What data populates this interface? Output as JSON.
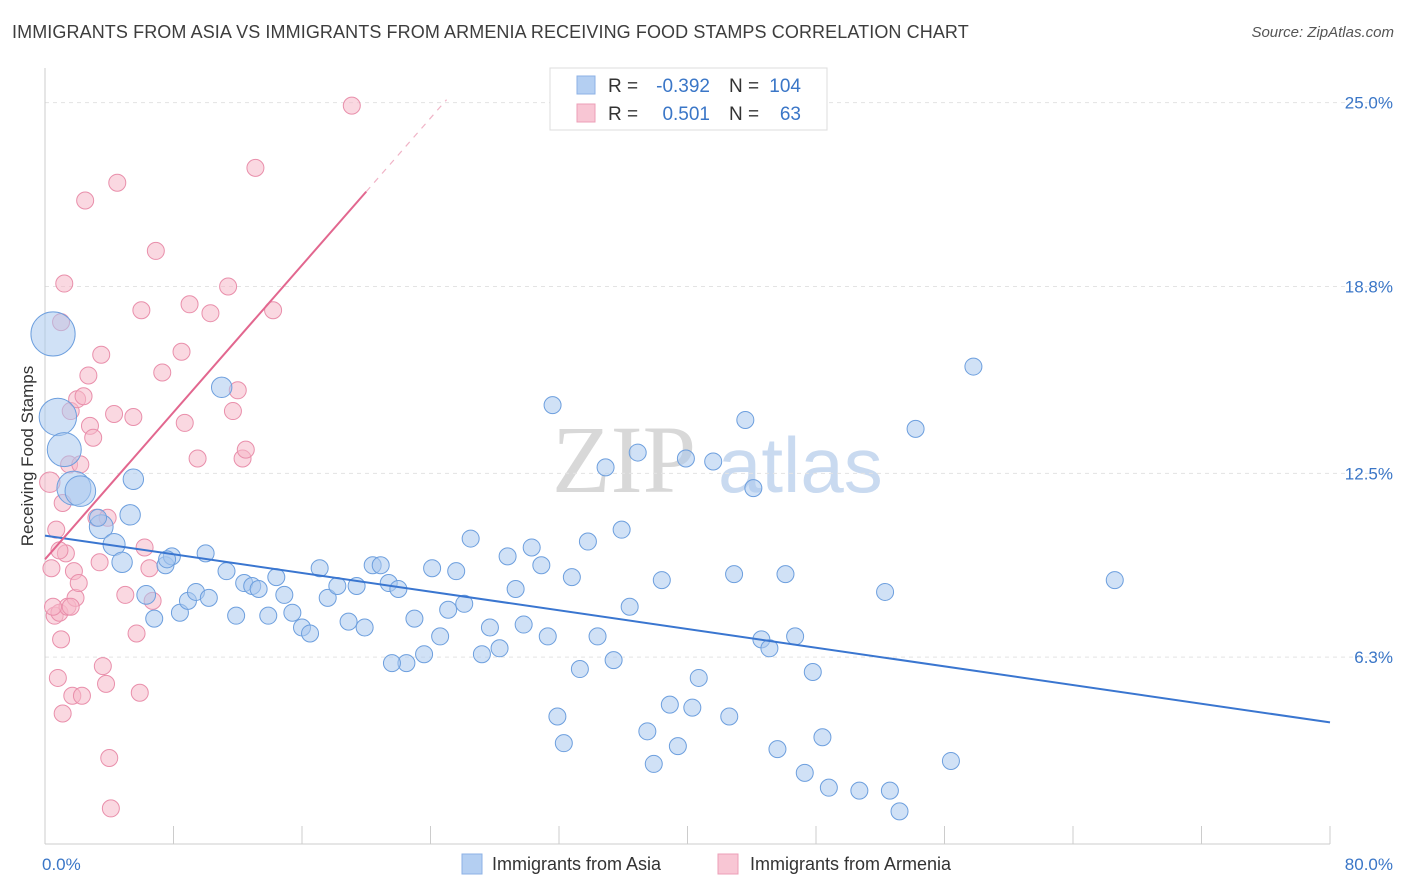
{
  "header": {
    "title": "IMMIGRANTS FROM ASIA VS IMMIGRANTS FROM ARMENIA RECEIVING FOOD STAMPS CORRELATION CHART",
    "source": "Source: ZipAtlas.com"
  },
  "watermark": {
    "zip": "ZIP",
    "atlas": "atlas"
  },
  "legend": {
    "r_label": "R =",
    "n_label": "N =",
    "asia_r": "-0.392",
    "asia_n": "104",
    "armenia_r": "0.501",
    "armenia_n": "63"
  },
  "chart_data": {
    "type": "scatter",
    "title": "IMMIGRANTS FROM ASIA VS IMMIGRANTS FROM ARMENIA RECEIVING FOOD STAMPS CORRELATION CHART",
    "xlabel": "",
    "ylabel": "Receiving Food Stamps",
    "xlim": [
      0,
      80
    ],
    "ylim": [
      0,
      26
    ],
    "x_tick_labels": [
      "0.0%",
      "80.0%"
    ],
    "y_ticks": [
      6.3,
      12.5,
      18.8,
      25.0
    ],
    "y_tick_labels": [
      "6.3%",
      "12.5%",
      "18.8%",
      "25.0%"
    ],
    "grid": true,
    "legend_position": "top-center",
    "colors": {
      "asia": "#a9c8ee",
      "asia_line": "#3a76d0",
      "armenia": "#f5b8c9",
      "armenia_line": "#e2678f"
    },
    "series": [
      {
        "name": "Immigrants from Asia",
        "r": -0.392,
        "n": 104,
        "trend": {
          "x0": 0,
          "y0": 10.4,
          "x1": 80,
          "y1": 4.1
        },
        "points": [
          [
            0.5,
            17.2,
            26
          ],
          [
            0.8,
            14.4,
            22
          ],
          [
            1.2,
            13.3,
            20
          ],
          [
            1.8,
            12.0,
            20
          ],
          [
            2.2,
            11.9,
            18
          ],
          [
            3.5,
            10.7,
            14
          ],
          [
            4.3,
            10.1,
            13
          ],
          [
            4.8,
            9.5,
            12
          ],
          [
            5.5,
            12.3,
            12
          ],
          [
            5.3,
            11.1,
            12
          ],
          [
            6.3,
            8.4,
            11
          ],
          [
            6.8,
            7.6,
            10
          ],
          [
            7.5,
            9.4,
            10
          ],
          [
            7.9,
            9.7,
            10
          ],
          [
            8.4,
            7.8,
            10
          ],
          [
            8.9,
            8.2,
            10
          ],
          [
            9.4,
            8.5,
            10
          ],
          [
            10.2,
            8.3,
            10
          ],
          [
            10.0,
            9.8,
            10
          ],
          [
            11.0,
            15.4,
            12
          ],
          [
            11.3,
            9.2,
            10
          ],
          [
            11.9,
            7.7,
            10
          ],
          [
            12.4,
            8.8,
            10
          ],
          [
            12.9,
            8.7,
            10
          ],
          [
            13.3,
            8.6,
            10
          ],
          [
            13.9,
            7.7,
            10
          ],
          [
            14.4,
            9.0,
            10
          ],
          [
            14.9,
            8.4,
            10
          ],
          [
            15.4,
            7.8,
            10
          ],
          [
            16.0,
            7.3,
            10
          ],
          [
            16.5,
            7.1,
            10
          ],
          [
            17.1,
            9.3,
            10
          ],
          [
            17.6,
            8.3,
            10
          ],
          [
            18.2,
            8.7,
            10
          ],
          [
            18.9,
            7.5,
            10
          ],
          [
            19.4,
            8.7,
            10
          ],
          [
            19.9,
            7.3,
            10
          ],
          [
            20.4,
            9.4,
            10
          ],
          [
            20.9,
            9.4,
            10
          ],
          [
            21.4,
            8.8,
            10
          ],
          [
            22.0,
            8.6,
            10
          ],
          [
            22.5,
            6.1,
            10
          ],
          [
            23.0,
            7.6,
            10
          ],
          [
            23.6,
            6.4,
            10
          ],
          [
            24.1,
            9.3,
            10
          ],
          [
            24.6,
            7.0,
            10
          ],
          [
            25.1,
            7.9,
            10
          ],
          [
            25.6,
            9.2,
            10
          ],
          [
            26.1,
            8.1,
            10
          ],
          [
            26.5,
            10.3,
            10
          ],
          [
            27.2,
            6.4,
            10
          ],
          [
            27.7,
            7.3,
            10
          ],
          [
            28.3,
            6.6,
            10
          ],
          [
            28.8,
            9.7,
            10
          ],
          [
            29.3,
            8.6,
            10
          ],
          [
            29.8,
            7.4,
            10
          ],
          [
            30.3,
            10.0,
            10
          ],
          [
            30.9,
            9.4,
            10
          ],
          [
            31.3,
            7.0,
            10
          ],
          [
            31.6,
            14.8,
            10
          ],
          [
            31.9,
            4.3,
            10
          ],
          [
            32.3,
            3.4,
            10
          ],
          [
            32.8,
            9.0,
            10
          ],
          [
            33.3,
            5.9,
            10
          ],
          [
            33.8,
            10.2,
            10
          ],
          [
            34.4,
            7.0,
            10
          ],
          [
            34.9,
            12.7,
            10
          ],
          [
            35.4,
            6.2,
            10
          ],
          [
            35.9,
            10.6,
            10
          ],
          [
            36.4,
            8.0,
            10
          ],
          [
            36.9,
            13.2,
            10
          ],
          [
            37.5,
            3.8,
            10
          ],
          [
            37.9,
            2.7,
            10
          ],
          [
            38.4,
            8.9,
            10
          ],
          [
            38.9,
            4.7,
            10
          ],
          [
            39.4,
            3.3,
            10
          ],
          [
            39.9,
            13.0,
            10
          ],
          [
            40.3,
            4.6,
            10
          ],
          [
            40.7,
            5.6,
            10
          ],
          [
            41.6,
            12.9,
            10
          ],
          [
            42.6,
            4.3,
            10
          ],
          [
            42.9,
            9.1,
            10
          ],
          [
            43.6,
            14.3,
            10
          ],
          [
            44.1,
            12.0,
            10
          ],
          [
            44.6,
            6.9,
            10
          ],
          [
            45.1,
            6.6,
            10
          ],
          [
            45.6,
            3.2,
            10
          ],
          [
            46.1,
            9.1,
            10
          ],
          [
            46.7,
            7.0,
            10
          ],
          [
            47.3,
            2.4,
            10
          ],
          [
            47.8,
            5.8,
            10
          ],
          [
            48.4,
            3.6,
            10
          ],
          [
            48.8,
            1.9,
            10
          ],
          [
            50.7,
            1.8,
            10
          ],
          [
            52.3,
            8.5,
            10
          ],
          [
            52.6,
            1.8,
            10
          ],
          [
            53.2,
            1.1,
            10
          ],
          [
            54.2,
            14.0,
            10
          ],
          [
            56.4,
            2.8,
            10
          ],
          [
            57.8,
            16.1,
            10
          ],
          [
            66.6,
            8.9,
            10
          ],
          [
            7.6,
            9.6,
            10
          ],
          [
            21.6,
            6.1,
            10
          ],
          [
            3.3,
            11.0,
            10
          ]
        ]
      },
      {
        "name": "Immigrants from Armenia",
        "r": 0.501,
        "n": 63,
        "trend": {
          "x0": 0,
          "y0": 9.6,
          "x1": 20,
          "y1": 22.0,
          "x_dash_end": 25,
          "y_dash_end": 25.1
        },
        "points": [
          [
            0.3,
            12.2,
            12
          ],
          [
            0.4,
            9.3,
            10
          ],
          [
            0.6,
            7.7,
            10
          ],
          [
            0.7,
            10.6,
            10
          ],
          [
            0.8,
            5.6,
            10
          ],
          [
            0.9,
            7.8,
            10
          ],
          [
            1.0,
            17.6,
            10
          ],
          [
            1.1,
            11.5,
            10
          ],
          [
            1.2,
            18.9,
            10
          ],
          [
            1.3,
            9.8,
            10
          ],
          [
            1.0,
            6.9,
            10
          ],
          [
            1.1,
            4.4,
            10
          ],
          [
            1.4,
            8.0,
            10
          ],
          [
            1.5,
            12.8,
            10
          ],
          [
            1.6,
            14.6,
            10
          ],
          [
            1.7,
            5.0,
            10
          ],
          [
            1.8,
            9.2,
            10
          ],
          [
            1.9,
            8.3,
            10
          ],
          [
            2.0,
            15.0,
            10
          ],
          [
            2.2,
            12.8,
            10
          ],
          [
            2.4,
            15.1,
            10
          ],
          [
            2.5,
            21.7,
            10
          ],
          [
            2.7,
            15.8,
            10
          ],
          [
            2.8,
            14.1,
            10
          ],
          [
            3.0,
            13.7,
            10
          ],
          [
            2.3,
            5.0,
            10
          ],
          [
            3.2,
            11.0,
            10
          ],
          [
            3.4,
            9.5,
            10
          ],
          [
            3.6,
            6.0,
            10
          ],
          [
            3.8,
            5.4,
            10
          ],
          [
            4.0,
            2.9,
            10
          ],
          [
            4.1,
            1.2,
            10
          ],
          [
            4.3,
            14.5,
            10
          ],
          [
            3.5,
            16.5,
            10
          ],
          [
            3.9,
            11.0,
            10
          ],
          [
            4.5,
            22.3,
            10
          ],
          [
            5.0,
            8.4,
            10
          ],
          [
            5.5,
            14.4,
            10
          ],
          [
            5.7,
            7.1,
            10
          ],
          [
            5.9,
            5.1,
            10
          ],
          [
            6.0,
            18.0,
            10
          ],
          [
            6.2,
            10.0,
            10
          ],
          [
            6.5,
            9.3,
            10
          ],
          [
            6.7,
            8.2,
            10
          ],
          [
            6.9,
            20.0,
            10
          ],
          [
            7.3,
            15.9,
            10
          ],
          [
            8.7,
            14.2,
            10
          ],
          [
            8.5,
            16.6,
            10
          ],
          [
            9.0,
            18.2,
            10
          ],
          [
            9.5,
            13.0,
            10
          ],
          [
            10.3,
            17.9,
            10
          ],
          [
            11.4,
            18.8,
            10
          ],
          [
            11.7,
            14.6,
            10
          ],
          [
            12.0,
            15.3,
            10
          ],
          [
            12.3,
            13.0,
            10
          ],
          [
            12.5,
            13.3,
            10
          ],
          [
            13.1,
            22.8,
            10
          ],
          [
            14.2,
            18.0,
            10
          ],
          [
            19.1,
            24.9,
            10
          ],
          [
            0.5,
            8.0,
            10
          ],
          [
            1.6,
            8.0,
            10
          ],
          [
            2.1,
            8.8,
            10
          ],
          [
            0.9,
            9.9,
            10
          ]
        ]
      }
    ]
  },
  "bottom_legend": {
    "asia_label": "Immigrants from Asia",
    "armenia_label": "Immigrants from Armenia"
  }
}
